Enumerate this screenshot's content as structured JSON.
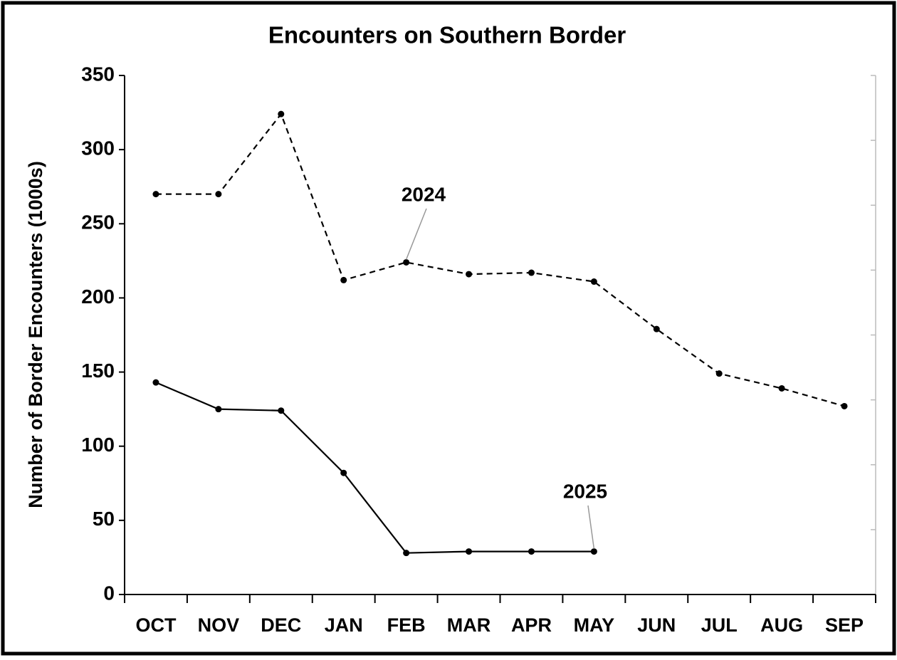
{
  "chart_data": {
    "type": "line",
    "title": "Encounters on Southern Border",
    "ylabel": "Number of Border Encounters (1000s)",
    "categories": [
      "OCT",
      "NOV",
      "DEC",
      "JAN",
      "FEB",
      "MAR",
      "APR",
      "MAY",
      "JUN",
      "JUL",
      "AUG",
      "SEP"
    ],
    "series": [
      {
        "name": "2024",
        "color": "#000000",
        "dash": true,
        "values": [
          270,
          270,
          324,
          212,
          224,
          216,
          217,
          211,
          179,
          149,
          139,
          127
        ]
      },
      {
        "name": "2025",
        "color": "#000000",
        "dash": false,
        "values": [
          143,
          125,
          124,
          82,
          28,
          29,
          29,
          29,
          null,
          null,
          null,
          null
        ]
      }
    ],
    "ylim": [
      0,
      350
    ],
    "yticks": [
      0,
      50,
      100,
      150,
      200,
      250,
      300,
      350
    ],
    "grid": false
  }
}
